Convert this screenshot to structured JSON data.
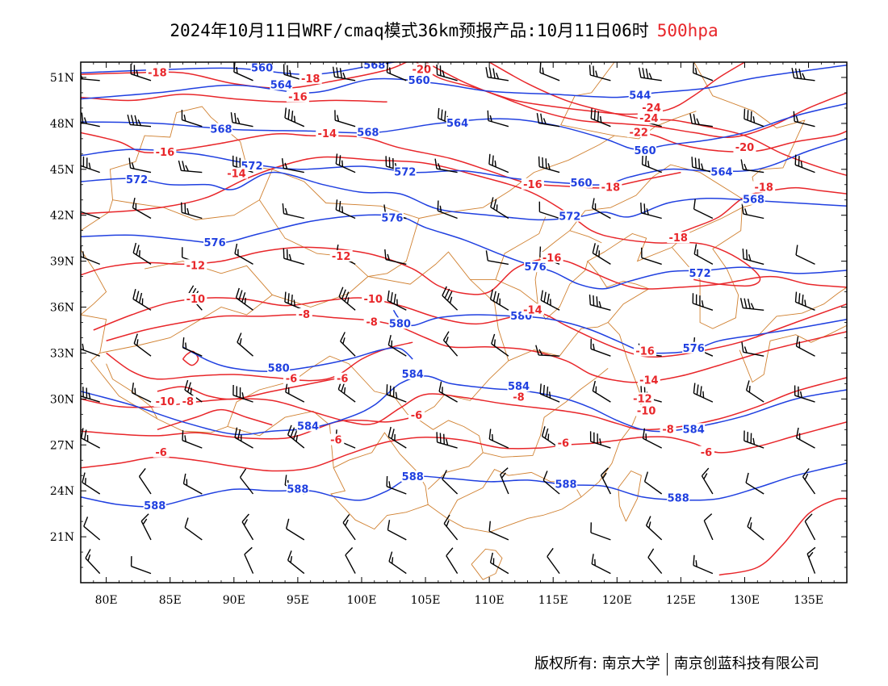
{
  "title": {
    "main": "2024年10月11日WRF/cmaq模式36km预报产品:10月11日06时",
    "level": "500hpa",
    "level_color": "#e8262a"
  },
  "axes": {
    "lon_labels": [
      "80E",
      "85E",
      "90E",
      "95E",
      "100E",
      "105E",
      "110E",
      "115E",
      "120E",
      "125E",
      "130E",
      "135E"
    ],
    "lon_values": [
      80,
      85,
      90,
      95,
      100,
      105,
      110,
      115,
      120,
      125,
      130,
      135
    ],
    "lat_labels": [
      "51N",
      "48N",
      "45N",
      "42N",
      "39N",
      "36N",
      "33N",
      "30N",
      "27N",
      "24N",
      "21N"
    ],
    "lat_values": [
      51,
      48,
      45,
      42,
      39,
      36,
      33,
      30,
      27,
      24,
      21
    ],
    "lon_range": [
      78,
      138
    ],
    "lat_range": [
      18,
      52
    ]
  },
  "colors": {
    "height_contours": "#2040e0",
    "temperature_contours": "#e8262a",
    "boundaries": "#d08030",
    "wind_barbs": "#000000",
    "frame": "#000000"
  },
  "height_labels": [
    {
      "text": "560",
      "lon": 92.2,
      "lat": 51.6
    },
    {
      "text": "568",
      "lon": 101.0,
      "lat": 51.8
    },
    {
      "text": "560",
      "lon": 104.5,
      "lat": 50.8
    },
    {
      "text": "544",
      "lon": 121.8,
      "lat": 49.8
    },
    {
      "text": "564",
      "lon": 93.7,
      "lat": 50.5
    },
    {
      "text": "568",
      "lon": 89.0,
      "lat": 47.6
    },
    {
      "text": "564",
      "lon": 107.5,
      "lat": 48.0
    },
    {
      "text": "568",
      "lon": 100.5,
      "lat": 47.4
    },
    {
      "text": "560",
      "lon": 122.2,
      "lat": 46.2
    },
    {
      "text": "572",
      "lon": 91.4,
      "lat": 45.2
    },
    {
      "text": "572",
      "lon": 82.4,
      "lat": 44.3
    },
    {
      "text": "572",
      "lon": 103.4,
      "lat": 44.8
    },
    {
      "text": "560",
      "lon": 117.2,
      "lat": 44.1
    },
    {
      "text": "564",
      "lon": 128.2,
      "lat": 44.8
    },
    {
      "text": "568",
      "lon": 130.7,
      "lat": 43.0
    },
    {
      "text": "576",
      "lon": 102.4,
      "lat": 41.8
    },
    {
      "text": "572",
      "lon": 116.3,
      "lat": 41.9
    },
    {
      "text": "576",
      "lon": 88.5,
      "lat": 40.2
    },
    {
      "text": "576",
      "lon": 113.6,
      "lat": 38.6
    },
    {
      "text": "572",
      "lon": 126.5,
      "lat": 38.2
    },
    {
      "text": "580",
      "lon": 103.0,
      "lat": 34.9
    },
    {
      "text": "580",
      "lon": 112.5,
      "lat": 35.4
    },
    {
      "text": "580",
      "lon": 93.5,
      "lat": 32.0
    },
    {
      "text": "584",
      "lon": 104.0,
      "lat": 31.6
    },
    {
      "text": "584",
      "lon": 112.3,
      "lat": 30.8
    },
    {
      "text": "576",
      "lon": 126.0,
      "lat": 33.3
    },
    {
      "text": "584",
      "lon": 95.8,
      "lat": 28.2
    },
    {
      "text": "584",
      "lon": 126.0,
      "lat": 28.0
    },
    {
      "text": "588",
      "lon": 95.0,
      "lat": 24.1
    },
    {
      "text": "588",
      "lon": 104.0,
      "lat": 24.9
    },
    {
      "text": "588",
      "lon": 83.8,
      "lat": 23.0
    },
    {
      "text": "588",
      "lon": 116.0,
      "lat": 24.4
    },
    {
      "text": "588",
      "lon": 124.8,
      "lat": 23.5
    }
  ],
  "temperature_labels": [
    {
      "text": "-18",
      "lon": 84.0,
      "lat": 51.3
    },
    {
      "text": "-20",
      "lon": 104.7,
      "lat": 51.5
    },
    {
      "text": "-18",
      "lon": 96.0,
      "lat": 50.9
    },
    {
      "text": "-16",
      "lon": 95.0,
      "lat": 49.7
    },
    {
      "text": "-24",
      "lon": 122.7,
      "lat": 49.0
    },
    {
      "text": "-24",
      "lon": 122.5,
      "lat": 48.3
    },
    {
      "text": "-22",
      "lon": 121.7,
      "lat": 47.4
    },
    {
      "text": "-14",
      "lon": 97.3,
      "lat": 47.3
    },
    {
      "text": "-20",
      "lon": 130.0,
      "lat": 46.4
    },
    {
      "text": "-16",
      "lon": 84.6,
      "lat": 46.1
    },
    {
      "text": "-14",
      "lon": 90.2,
      "lat": 44.7
    },
    {
      "text": "-16",
      "lon": 113.4,
      "lat": 44.0
    },
    {
      "text": "-18",
      "lon": 119.5,
      "lat": 43.8
    },
    {
      "text": "-18",
      "lon": 131.5,
      "lat": 43.8
    },
    {
      "text": "-18",
      "lon": 124.8,
      "lat": 40.5
    },
    {
      "text": "-16",
      "lon": 114.9,
      "lat": 39.2
    },
    {
      "text": "-12",
      "lon": 87.0,
      "lat": 38.7
    },
    {
      "text": "-12",
      "lon": 98.4,
      "lat": 39.3
    },
    {
      "text": "-10",
      "lon": 87.0,
      "lat": 36.5
    },
    {
      "text": "-10",
      "lon": 100.9,
      "lat": 36.5
    },
    {
      "text": "-8",
      "lon": 95.5,
      "lat": 35.5
    },
    {
      "text": "-8",
      "lon": 100.8,
      "lat": 35.0
    },
    {
      "text": "-14",
      "lon": 113.4,
      "lat": 35.8
    },
    {
      "text": "-16",
      "lon": 122.2,
      "lat": 33.1
    },
    {
      "text": "-14",
      "lon": 122.5,
      "lat": 31.2
    },
    {
      "text": "-6",
      "lon": 94.5,
      "lat": 31.3
    },
    {
      "text": "-6",
      "lon": 98.5,
      "lat": 31.3
    },
    {
      "text": "-10",
      "lon": 84.6,
      "lat": 29.8
    },
    {
      "text": "-8",
      "lon": 86.4,
      "lat": 29.8
    },
    {
      "text": "-12",
      "lon": 122.0,
      "lat": 30.0
    },
    {
      "text": "-8",
      "lon": 112.3,
      "lat": 30.1
    },
    {
      "text": "-10",
      "lon": 122.3,
      "lat": 29.2
    },
    {
      "text": "-6",
      "lon": 104.3,
      "lat": 28.9
    },
    {
      "text": "-8",
      "lon": 124.0,
      "lat": 28.0
    },
    {
      "text": "-6",
      "lon": 98.0,
      "lat": 27.3
    },
    {
      "text": "-6",
      "lon": 115.8,
      "lat": 27.1
    },
    {
      "text": "-6",
      "lon": 84.3,
      "lat": 26.5
    },
    {
      "text": "-6",
      "lon": 127.0,
      "lat": 26.5
    }
  ],
  "footer": {
    "left": "版权所有: 南京大学",
    "right": "南京创蓝科技有限公司"
  }
}
